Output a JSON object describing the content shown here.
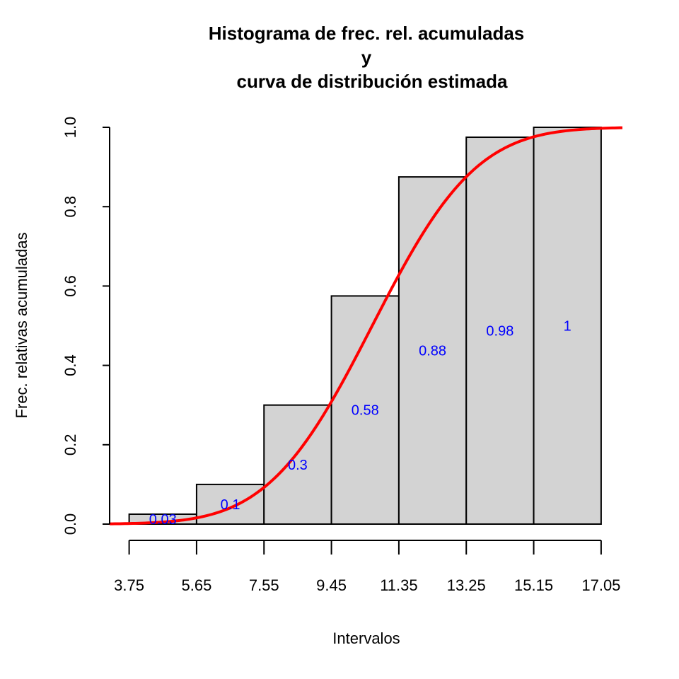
{
  "chart_data": {
    "type": "bar",
    "title": [
      "Histograma de frec. rel. acumuladas",
      "y",
      "curva de distribución estimada"
    ],
    "xlabel": "Intervalos",
    "ylabel": "Frec. relativas acumuladas",
    "x_breaks": [
      3.75,
      5.65,
      7.55,
      9.45,
      11.35,
      13.25,
      15.15,
      17.05
    ],
    "x_tick_labels": [
      "3.75",
      "5.65",
      "7.55",
      "9.45",
      "11.35",
      "13.25",
      "15.15",
      "17.05"
    ],
    "values": [
      0.025,
      0.1,
      0.3,
      0.575,
      0.875,
      0.975,
      1.0
    ],
    "data_labels": [
      "0.03",
      "0.1",
      "0.3",
      "0.58",
      "0.88",
      "0.98",
      "1"
    ],
    "ylim": [
      0,
      1
    ],
    "xlim": [
      3.2,
      17.65
    ],
    "y_ticks": [
      0.0,
      0.2,
      0.4,
      0.6,
      0.8,
      1.0
    ],
    "y_tick_labels": [
      "0.0",
      "0.2",
      "0.4",
      "0.6",
      "0.8",
      "1.0"
    ],
    "curve": {
      "type": "normal_cdf",
      "mean": 10.6,
      "sd": 2.3,
      "color": "#ff0000"
    },
    "bar_fill": "#d3d3d3",
    "bar_border": "#000000",
    "label_color": "#0000ff",
    "grid": false
  }
}
